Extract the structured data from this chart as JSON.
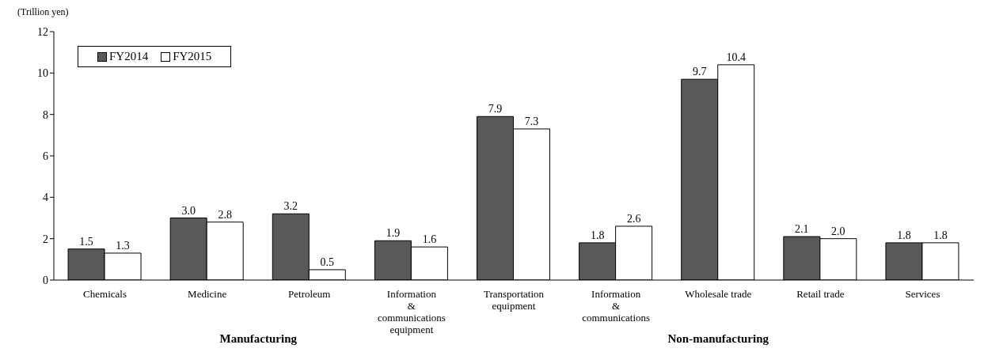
{
  "chart_data": {
    "type": "bar",
    "ylabel": "(Trillion yen)",
    "categories": [
      "Chemicals",
      "Medicine",
      "Petroleum",
      "Information & communications equipment",
      "Transportation equipment",
      "Information & communications",
      "Wholesale trade",
      "Retail trade",
      "Services"
    ],
    "series": [
      {
        "name": "FY2014",
        "color": "#595959",
        "values": [
          1.5,
          3.0,
          3.2,
          1.9,
          7.9,
          1.8,
          9.7,
          2.1,
          1.8
        ],
        "value_labels": [
          "1.5",
          "3.0",
          "3.2",
          "1.9",
          "7.9",
          "1.8",
          "9.7",
          "2.1",
          "1.8"
        ]
      },
      {
        "name": "FY2015",
        "color": "#ffffff",
        "values": [
          1.3,
          2.8,
          0.5,
          1.6,
          7.3,
          2.6,
          10.4,
          2.0,
          1.8
        ],
        "value_labels": [
          "1.3",
          "2.8",
          "0.5",
          "1.6",
          "7.3",
          "2.6",
          "10.4",
          "2.0",
          "1.8"
        ]
      }
    ],
    "ylim": [
      0,
      12
    ],
    "yticks": [
      0,
      2,
      4,
      6,
      8,
      10,
      12
    ],
    "grid": false,
    "legend": "top left",
    "annotations": [
      "Manufacturing",
      "Non-manufacturing"
    ]
  }
}
